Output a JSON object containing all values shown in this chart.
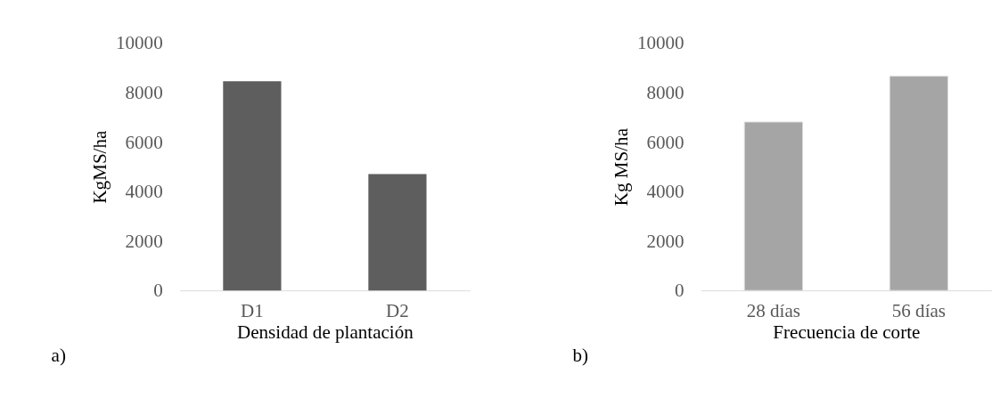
{
  "chart_data": [
    {
      "type": "bar",
      "categories": [
        "D1",
        "D2"
      ],
      "values": [
        8450,
        4700
      ],
      "color": "#5e5e5e",
      "xlabel": "Densidad de plantación",
      "ylabel": "KgMS/ha",
      "ylim": [
        0,
        10000
      ],
      "yticks": [
        0,
        2000,
        4000,
        6000,
        8000,
        10000
      ],
      "grid": false,
      "annotations": [
        "a)"
      ]
    },
    {
      "type": "bar",
      "categories": [
        "28 días",
        "56 días"
      ],
      "values": [
        6800,
        8650
      ],
      "color": "#a5a5a5",
      "xlabel": "Frecuencia de corte",
      "ylabel": "Kg MS/ha",
      "ylim": [
        0,
        10000
      ],
      "yticks": [
        0,
        2000,
        4000,
        6000,
        8000,
        10000
      ],
      "grid": false,
      "annotations": [
        "b)"
      ]
    }
  ]
}
